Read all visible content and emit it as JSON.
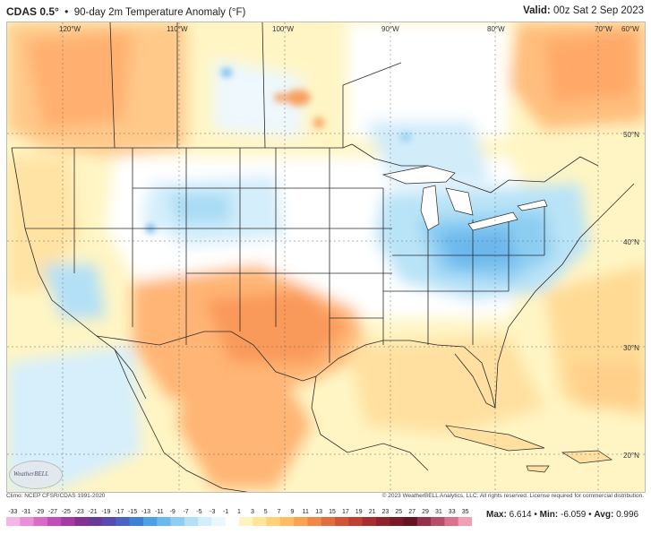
{
  "header": {
    "model": "CDAS 0.5°",
    "separator": "•",
    "title": "90-day 2m Temperature Anomaly (°F)",
    "valid_label": "Valid:",
    "valid_value": "00z Sat 2 Sep 2023"
  },
  "map": {
    "lon_labels": [
      "120°W",
      "110°W",
      "100°W",
      "90°W",
      "80°W",
      "70°W",
      "60°W"
    ],
    "lat_labels": [
      "50°N",
      "40°N",
      "30°N",
      "20°N"
    ],
    "logo_text": "WeatherBELL"
  },
  "footer": {
    "climo": "Climo: NCEP CFSR/CDAS 1991-2020",
    "copyright": "© 2023 WeatherBELL Analytics, LLC. All rights reserved. License required for commercial distribution.",
    "colorbar_ticks": [
      "-33",
      "-31",
      "-29",
      "-27",
      "-25",
      "-23",
      "-21",
      "-19",
      "-17",
      "-15",
      "-13",
      "-11",
      "-9",
      "-7",
      "-5",
      "-3",
      "-1",
      "1",
      "3",
      "5",
      "7",
      "9",
      "11",
      "13",
      "15",
      "17",
      "19",
      "21",
      "23",
      "25",
      "27",
      "29",
      "31",
      "33",
      "35"
    ],
    "max_label": "Max:",
    "max_value": "6.614",
    "min_label": "Min:",
    "min_value": "-6.059",
    "avg_label": "Avg:",
    "avg_value": "0.996"
  },
  "colors": {
    "ocean_base": "#fff6c8",
    "land_neutral": "#ffffff",
    "warm_light": "#ffe29a",
    "warm_mid": "#ffc070",
    "warm_strong": "#f6924a",
    "cool_light": "#d8f0fb",
    "cool_mid": "#9fd8f4",
    "cool_strong": "#5ca8e8",
    "border_line": "#333333"
  }
}
